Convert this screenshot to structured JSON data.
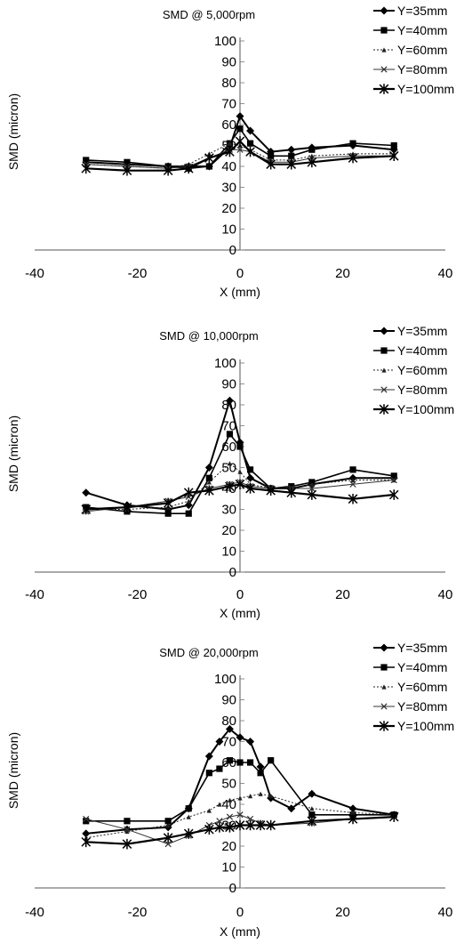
{
  "chart_data": [
    {
      "type": "line",
      "title": "SMD @ 5,000rpm",
      "xlabel": "X (mm)",
      "ylabel": "SMD (micron)",
      "xlim": [
        -40,
        40
      ],
      "ylim": [
        0,
        100
      ],
      "xticks": [
        "-40",
        "-20",
        "0",
        "20",
        "40"
      ],
      "yticks": [
        "0",
        "10",
        "20",
        "30",
        "40",
        "50",
        "60",
        "70",
        "80",
        "90",
        "100"
      ],
      "legend_position": "top-right",
      "series": [
        {
          "name": "Y=35mm",
          "x": [
            -30,
            -22,
            -14,
            -10,
            -6,
            -2,
            0,
            2,
            6,
            10,
            14,
            22,
            30
          ],
          "y": [
            42,
            41,
            40,
            40,
            40,
            49,
            64,
            57,
            47,
            48,
            49,
            50,
            48
          ]
        },
        {
          "name": "Y=40mm",
          "x": [
            -30,
            -22,
            -14,
            -10,
            -6,
            -2,
            0,
            2,
            6,
            10,
            14,
            22,
            30
          ],
          "y": [
            43,
            42,
            40,
            39,
            40,
            51,
            58,
            51,
            45,
            45,
            48,
            51,
            50
          ]
        },
        {
          "name": "Y=60mm",
          "x": [
            -30,
            -22,
            -14,
            -10,
            -6,
            -2,
            0,
            2,
            6,
            10,
            14,
            22,
            30
          ],
          "y": [
            41,
            40,
            39,
            41,
            46,
            51,
            50,
            48,
            43,
            43,
            45,
            46,
            46
          ]
        },
        {
          "name": "Y=80mm",
          "x": [
            -30,
            -22,
            -14,
            -10,
            -6,
            -2,
            0,
            2,
            6,
            10,
            14,
            22,
            30
          ],
          "y": [
            41,
            40,
            39,
            40,
            44,
            48,
            48,
            47,
            42,
            42,
            44,
            45,
            45
          ]
        },
        {
          "name": "Y=100mm",
          "x": [
            -30,
            -22,
            -14,
            -10,
            -6,
            -2,
            0,
            2,
            6,
            10,
            14,
            22,
            30
          ],
          "y": [
            39,
            38,
            38,
            39,
            44,
            47,
            52,
            47,
            41,
            41,
            42,
            44,
            45
          ]
        }
      ]
    },
    {
      "type": "line",
      "title": "SMD @ 10,000rpm",
      "xlabel": "X (mm)",
      "ylabel": "SMD (micron)",
      "xlim": [
        -40,
        40
      ],
      "ylim": [
        0,
        100
      ],
      "xticks": [
        "-40",
        "-20",
        "0",
        "20",
        "40"
      ],
      "yticks": [
        "0",
        "10",
        "20",
        "30",
        "40",
        "50",
        "60",
        "70",
        "80",
        "90",
        "100"
      ],
      "legend_position": "top-right",
      "series": [
        {
          "name": "Y=35mm",
          "x": [
            -30,
            -22,
            -14,
            -10,
            -6,
            -2,
            0,
            2,
            6,
            10,
            14,
            22,
            30
          ],
          "y": [
            38,
            32,
            30,
            32,
            50,
            82,
            62,
            45,
            40,
            40,
            42,
            45,
            45
          ]
        },
        {
          "name": "Y=40mm",
          "x": [
            -30,
            -22,
            -14,
            -10,
            -6,
            -2,
            0,
            2,
            6,
            10,
            14,
            22,
            30
          ],
          "y": [
            31,
            29,
            28,
            28,
            45,
            66,
            60,
            49,
            40,
            41,
            43,
            49,
            46
          ]
        },
        {
          "name": "Y=60mm",
          "x": [
            -30,
            -22,
            -14,
            -10,
            -6,
            -2,
            0,
            2,
            6,
            10,
            14,
            22,
            30
          ],
          "y": [
            30,
            30,
            31,
            34,
            43,
            52,
            48,
            42,
            40,
            40,
            42,
            44,
            44
          ]
        },
        {
          "name": "Y=80mm",
          "x": [
            -30,
            -22,
            -14,
            -10,
            -6,
            -2,
            0,
            2,
            6,
            10,
            14,
            22,
            30
          ],
          "y": [
            29,
            31,
            34,
            36,
            40,
            42,
            43,
            41,
            40,
            40,
            40,
            42,
            44
          ]
        },
        {
          "name": "Y=100mm",
          "x": [
            -30,
            -22,
            -14,
            -10,
            -6,
            -2,
            0,
            2,
            6,
            10,
            14,
            22,
            30
          ],
          "y": [
            30,
            31,
            33,
            38,
            39,
            41,
            42,
            40,
            39,
            38,
            37,
            35,
            37
          ]
        }
      ]
    },
    {
      "type": "line",
      "title": "SMD @ 20,000rpm",
      "xlabel": "X (mm)",
      "ylabel": "SMD (micron)",
      "xlim": [
        -40,
        40
      ],
      "ylim": [
        0,
        100
      ],
      "xticks": [
        "-40",
        "-20",
        "0",
        "20",
        "40"
      ],
      "yticks": [
        "0",
        "10",
        "20",
        "30",
        "40",
        "50",
        "60",
        "70",
        "80",
        "90",
        "100"
      ],
      "legend_position": "top-right",
      "series": [
        {
          "name": "Y=35mm",
          "x": [
            -30,
            -22,
            -14,
            -10,
            -6,
            -4,
            -2,
            0,
            2,
            4,
            6,
            10,
            14,
            22,
            30
          ],
          "y": [
            26,
            28,
            29,
            38,
            63,
            70,
            76,
            72,
            70,
            58,
            43,
            38,
            45,
            38,
            35
          ]
        },
        {
          "name": "Y=40mm",
          "x": [
            -30,
            -22,
            -14,
            -10,
            -6,
            -4,
            -2,
            0,
            2,
            4,
            6,
            14,
            22,
            30
          ],
          "y": [
            32,
            32,
            32,
            38,
            55,
            57,
            61,
            60,
            60,
            55,
            61,
            35,
            35,
            35
          ]
        },
        {
          "name": "Y=60mm",
          "x": [
            -30,
            -22,
            -14,
            -10,
            -6,
            -4,
            -2,
            0,
            2,
            4,
            6,
            14,
            22,
            30
          ],
          "y": [
            24,
            27,
            30,
            34,
            37,
            40,
            42,
            43,
            44,
            45,
            44,
            38,
            36,
            35
          ]
        },
        {
          "name": "Y=80mm",
          "x": [
            -30,
            -22,
            -14,
            -10,
            -6,
            -4,
            -2,
            0,
            2,
            4,
            6,
            14,
            22,
            30
          ],
          "y": [
            33,
            28,
            21,
            25,
            30,
            32,
            34,
            35,
            33,
            31,
            30,
            31,
            33,
            34
          ]
        },
        {
          "name": "Y=100mm",
          "x": [
            -30,
            -22,
            -14,
            -10,
            -6,
            -4,
            -2,
            0,
            2,
            4,
            6,
            14,
            22,
            30
          ],
          "y": [
            22,
            21,
            24,
            26,
            28,
            29,
            29,
            30,
            30,
            30,
            30,
            32,
            33,
            34
          ]
        }
      ]
    }
  ]
}
